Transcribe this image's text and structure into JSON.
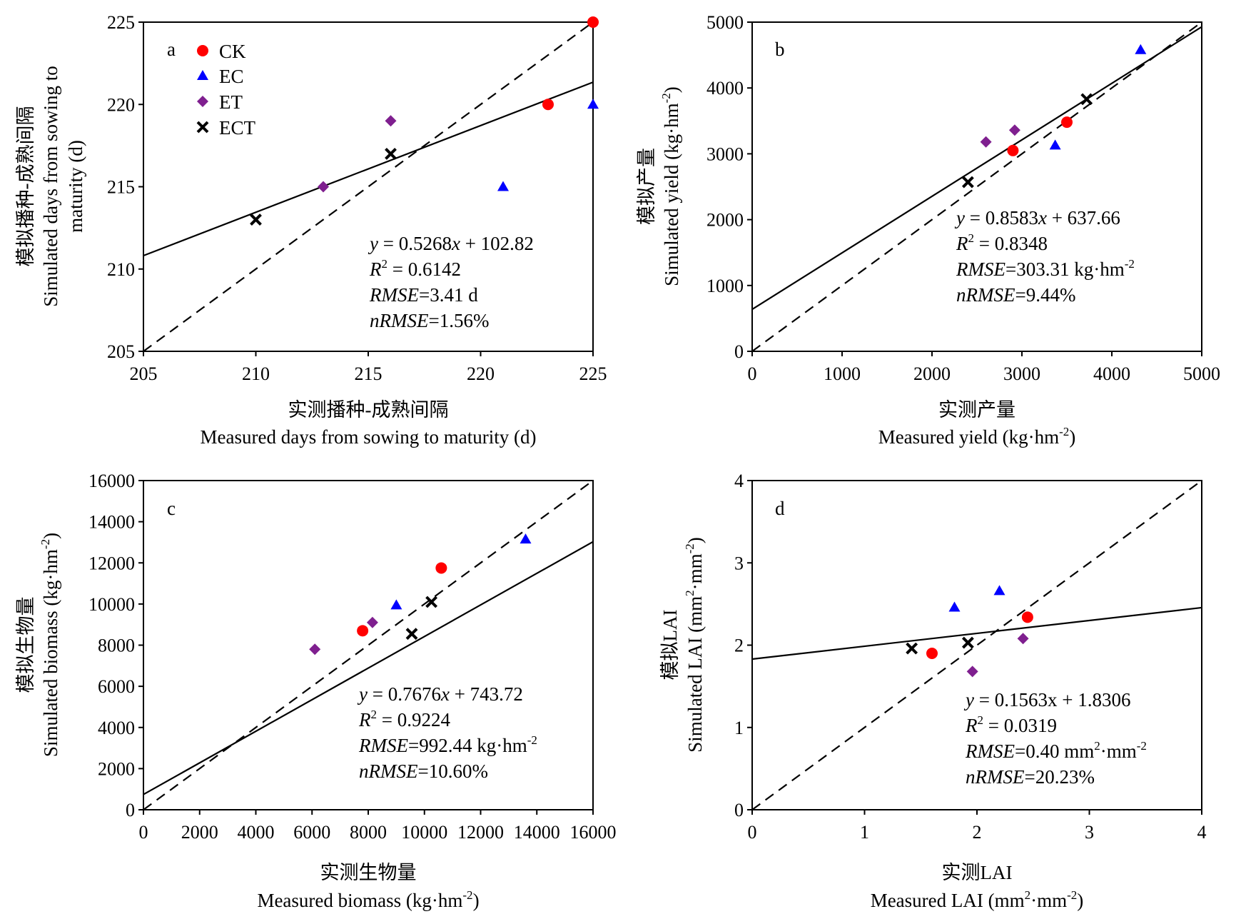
{
  "legend": [
    {
      "key": "CK",
      "label": "CK",
      "marker": "circle",
      "color": "#ff0000"
    },
    {
      "key": "EC",
      "label": "EC",
      "marker": "triangle",
      "color": "#0000ff"
    },
    {
      "key": "ET",
      "label": "ET",
      "marker": "diamond",
      "color": "#7f1f8f"
    },
    {
      "key": "ECT",
      "label": "ECT",
      "marker": "x",
      "color": "#000000"
    }
  ],
  "chart_data": [
    {
      "type": "scatter",
      "panel_label": "a",
      "xlabel_cn": "实测播种-成熟间隔",
      "xlabel_en": "Measured days from sowing to maturity (d)",
      "ylabel_cn": "模拟播种-成熟间隔",
      "ylabel_en_1": "Simulated days from sowing to",
      "ylabel_en_2": "maturity (d)",
      "xlim": [
        205,
        225
      ],
      "ylim": [
        205,
        225
      ],
      "xticks": [
        205,
        210,
        215,
        220,
        225
      ],
      "yticks": [
        205,
        210,
        215,
        220,
        225
      ],
      "series": [
        {
          "key": "CK",
          "points": [
            [
              223,
              220
            ],
            [
              225,
              225
            ]
          ]
        },
        {
          "key": "EC",
          "points": [
            [
              221,
              215
            ],
            [
              225,
              220
            ]
          ]
        },
        {
          "key": "ET",
          "points": [
            [
              213,
              215
            ],
            [
              216,
              219
            ]
          ]
        },
        {
          "key": "ECT",
          "points": [
            [
              210,
              213
            ],
            [
              216,
              217
            ]
          ]
        }
      ],
      "fit": {
        "slope": 0.5268,
        "intercept": 102.82
      },
      "annotations": {
        "equation": [
          "y",
          " = 0.5268",
          "x",
          " + 102.82"
        ],
        "r2": [
          "R",
          "2",
          " = 0.6142"
        ],
        "rmse": [
          "RMSE",
          "=3.41 d",
          "",
          ""
        ],
        "nrmse": [
          "nRMSE",
          "=1.56%"
        ]
      }
    },
    {
      "type": "scatter",
      "panel_label": "b",
      "xlabel_cn": "实测产量",
      "xlabel_en": [
        "Measured yield (kg·hm",
        "-2",
        ")"
      ],
      "ylabel_cn": "模拟产量",
      "ylabel_en": [
        "Simulated yield (kg·hm",
        "-2",
        ")"
      ],
      "xlim": [
        0,
        5000
      ],
      "ylim": [
        0,
        5000
      ],
      "xticks": [
        0,
        1000,
        2000,
        3000,
        4000,
        5000
      ],
      "yticks": [
        0,
        1000,
        2000,
        3000,
        4000,
        5000
      ],
      "series": [
        {
          "key": "CK",
          "points": [
            [
              2900,
              3050
            ],
            [
              3500,
              3480
            ]
          ]
        },
        {
          "key": "EC",
          "points": [
            [
              3370,
              3130
            ],
            [
              4320,
              4580
            ]
          ]
        },
        {
          "key": "ET",
          "points": [
            [
              2600,
              3180
            ],
            [
              2920,
              3360
            ]
          ]
        },
        {
          "key": "ECT",
          "points": [
            [
              2400,
              2570
            ],
            [
              3720,
              3830
            ]
          ]
        }
      ],
      "fit": {
        "slope": 0.8583,
        "intercept": 637.66
      },
      "annotations": {
        "equation": [
          "y",
          " = 0.8583",
          "x",
          " + 637.66"
        ],
        "r2": [
          "R",
          "2",
          " = 0.8348"
        ],
        "rmse": [
          "RMSE",
          "=303.31 kg·hm",
          "-2",
          ""
        ],
        "nrmse": [
          "nRMSE",
          "=9.44%"
        ]
      }
    },
    {
      "type": "scatter",
      "panel_label": "c",
      "xlabel_cn": "实测生物量",
      "xlabel_en": [
        "Measured biomass (kg·hm",
        "-2",
        ")"
      ],
      "ylabel_cn": "模拟生物量",
      "ylabel_en": [
        "Simulated biomass (kg·hm",
        "-2",
        ")"
      ],
      "xlim": [
        0,
        16000
      ],
      "ylim": [
        0,
        16000
      ],
      "xticks": [
        0,
        2000,
        4000,
        6000,
        8000,
        10000,
        12000,
        14000,
        16000
      ],
      "yticks": [
        0,
        2000,
        4000,
        6000,
        8000,
        10000,
        12000,
        14000,
        16000
      ],
      "series": [
        {
          "key": "CK",
          "points": [
            [
              7800,
              8700
            ],
            [
              10600,
              11750
            ]
          ]
        },
        {
          "key": "EC",
          "points": [
            [
              9000,
              9950
            ],
            [
              13600,
              13150
            ]
          ]
        },
        {
          "key": "ET",
          "points": [
            [
              6100,
              7800
            ],
            [
              8150,
              9100
            ]
          ]
        },
        {
          "key": "ECT",
          "points": [
            [
              9550,
              8550
            ],
            [
              10250,
              10100
            ]
          ]
        }
      ],
      "fit": {
        "slope": 0.7676,
        "intercept": 743.72
      },
      "annotations": {
        "equation": [
          "y",
          " = 0.7676",
          "x",
          " + 743.72"
        ],
        "r2": [
          "R",
          "2",
          " = 0.9224"
        ],
        "rmse": [
          "RMSE",
          "=992.44 kg·hm",
          "-2",
          ""
        ],
        "nrmse": [
          "nRMSE",
          "=10.60%"
        ]
      }
    },
    {
      "type": "scatter",
      "panel_label": "d",
      "xlabel_cn": "实测LAI",
      "xlabel_en": [
        "Measured LAI (mm",
        "2",
        "·mm",
        "-2",
        ")"
      ],
      "ylabel_cn": "模拟LAI",
      "ylabel_en": [
        "Simulated LAI (mm",
        "2",
        "·mm",
        "-2",
        ")"
      ],
      "xlim": [
        0,
        4
      ],
      "ylim": [
        0,
        4
      ],
      "xticks": [
        0,
        1,
        2,
        3,
        4
      ],
      "yticks": [
        0,
        1,
        2,
        3,
        4
      ],
      "series": [
        {
          "key": "CK",
          "points": [
            [
              1.6,
              1.9
            ],
            [
              2.45,
              2.34
            ]
          ]
        },
        {
          "key": "EC",
          "points": [
            [
              1.8,
              2.46
            ],
            [
              2.2,
              2.66
            ]
          ]
        },
        {
          "key": "ET",
          "points": [
            [
              1.96,
              1.68
            ],
            [
              2.41,
              2.08
            ]
          ]
        },
        {
          "key": "ECT",
          "points": [
            [
              1.42,
              1.96
            ],
            [
              1.92,
              2.03
            ]
          ]
        }
      ],
      "fit": {
        "slope": 0.1563,
        "intercept": 1.8306
      },
      "annotations": {
        "equation": [
          "y = 0.1563x + 1.8306"
        ],
        "r2": [
          "R",
          "2",
          " = 0.0319"
        ],
        "rmse": [
          "RMSE",
          "=0.40 mm",
          "2",
          "·mm",
          "-2"
        ],
        "nrmse": [
          "nRMSE",
          "=20.23%"
        ]
      }
    }
  ]
}
